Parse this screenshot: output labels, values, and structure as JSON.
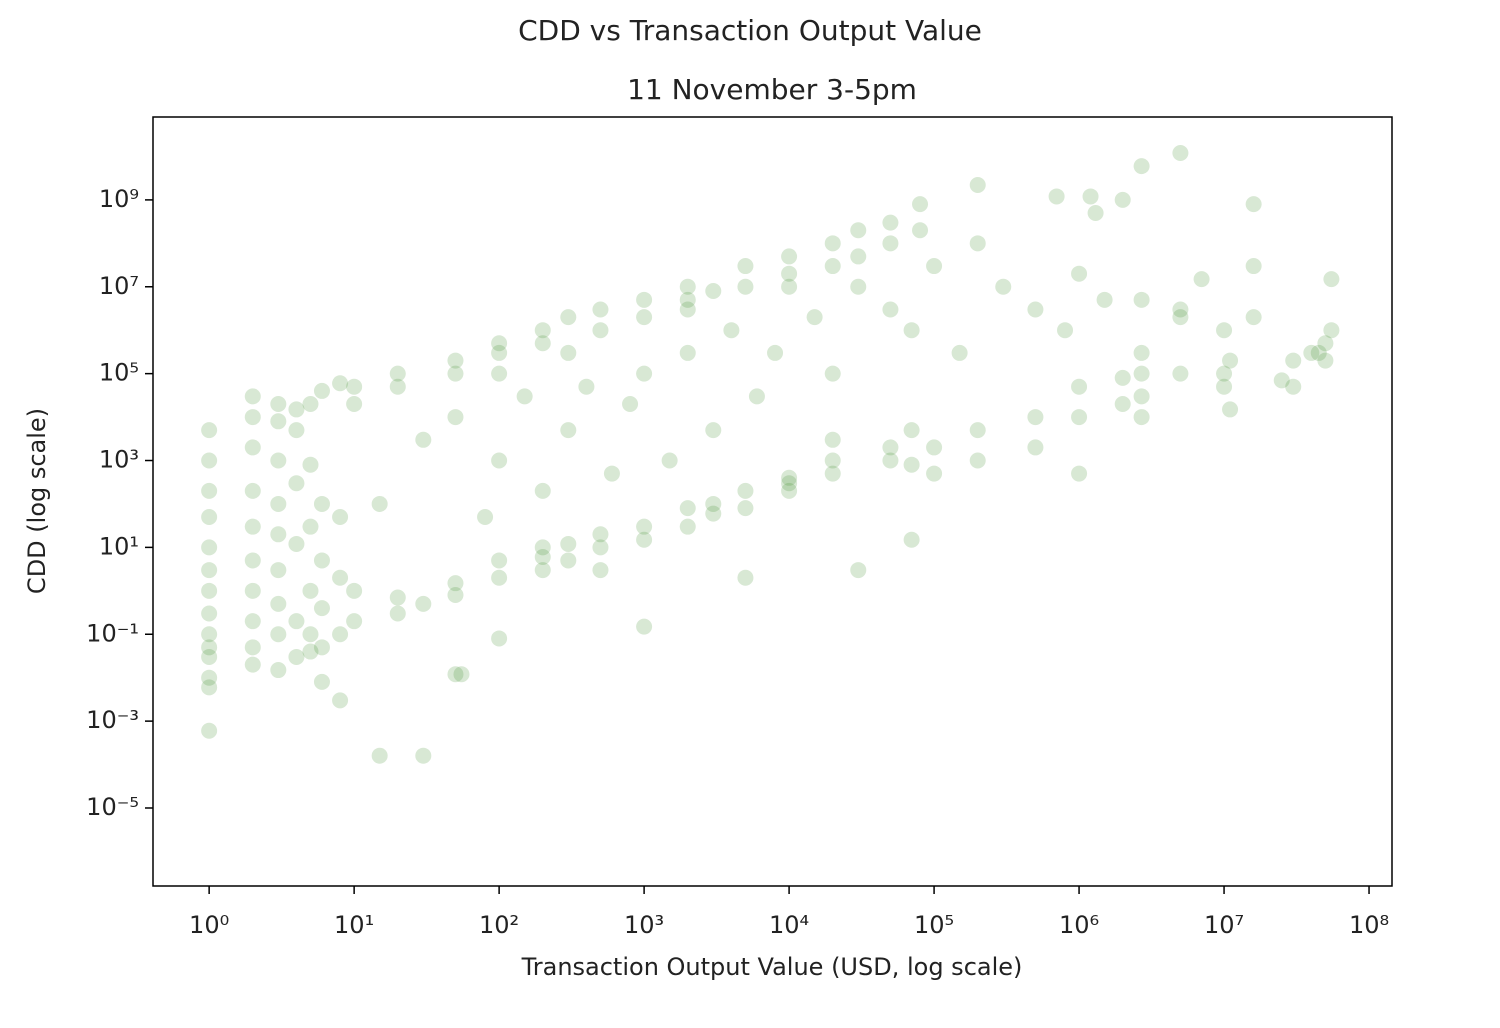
{
  "chart_data": {
    "type": "scatter",
    "title": "CDD vs Transaction Output Value",
    "subtitle": "11 November 3-5pm",
    "x_label": "Transaction Output Value (USD, log scale)",
    "y_label": "CDD (log scale)",
    "color": "#3a8a2a",
    "alpha": 0.2,
    "xscale": "log",
    "yscale": "log",
    "grid": false,
    "xlim": [
      0.41,
      144000000
    ],
    "ylim": [
      1.6e-07,
      81000000000
    ],
    "xticks": [
      {
        "value": 1,
        "label": "10⁰"
      },
      {
        "value": 10,
        "label": "10¹"
      },
      {
        "value": 100,
        "label": "10²"
      },
      {
        "value": 1000,
        "label": "10³"
      },
      {
        "value": 10000,
        "label": "10⁴"
      },
      {
        "value": 100000,
        "label": "10⁵"
      },
      {
        "value": 1000000,
        "label": "10⁶"
      },
      {
        "value": 10000000,
        "label": "10⁷"
      },
      {
        "value": 100000000,
        "label": "10⁸"
      }
    ],
    "yticks": [
      {
        "value": 1e-05,
        "label": "10⁻⁵"
      },
      {
        "value": 0.001,
        "label": "10⁻³"
      },
      {
        "value": 0.1,
        "label": "10⁻¹"
      },
      {
        "value": 10,
        "label": "10¹"
      },
      {
        "value": 1000,
        "label": "10³"
      },
      {
        "value": 100000,
        "label": "10⁵"
      },
      {
        "value": 10000000,
        "label": "10⁷"
      },
      {
        "value": 1000000000,
        "label": "10⁹"
      }
    ],
    "x": [
      1,
      1,
      1,
      1,
      1,
      1,
      1,
      1,
      1,
      1,
      1,
      1,
      1,
      1,
      2,
      2,
      2,
      2,
      2,
      2,
      2,
      2,
      2,
      2,
      3,
      3,
      3,
      3,
      3,
      3,
      3,
      3,
      3,
      4,
      4,
      4,
      4,
      4,
      4,
      5,
      5,
      5,
      5,
      5,
      5,
      6,
      6,
      6,
      6,
      6,
      6,
      8,
      8,
      8,
      8,
      8,
      10,
      10,
      20,
      20,
      30,
      30,
      15,
      50,
      50,
      50,
      100,
      100,
      100,
      200,
      200,
      200,
      300,
      300,
      500,
      500,
      500,
      1000,
      1000,
      1000,
      2000,
      2000,
      3000,
      3000,
      5000,
      5000,
      5000,
      10000,
      10000,
      10000,
      20000,
      20000,
      20000,
      50000,
      50000,
      70000,
      70000,
      70000,
      100000,
      100000,
      200000,
      200000,
      500000,
      500000,
      1000000,
      1000000,
      1000000,
      2000000,
      2000000,
      2700000,
      2700000,
      2700000,
      2700000,
      10,
      10,
      20,
      20,
      50,
      50,
      100,
      100,
      100,
      200,
      200,
      300,
      300,
      500,
      500,
      1000,
      1000,
      2000,
      2000,
      2000,
      3000,
      5000,
      5000,
      10000,
      10000,
      10000,
      20000,
      20000,
      30000,
      30000,
      50000,
      50000,
      80000,
      80000,
      15,
      30,
      50,
      80,
      100,
      150,
      200,
      300,
      400,
      600,
      800,
      1000,
      1500,
      2000,
      3000,
      4000,
      6000,
      8000,
      15000,
      20000,
      30000,
      50000,
      70000,
      100000,
      150000,
      200000,
      300000,
      500000,
      800000,
      1000000,
      1500000,
      2000000,
      2700000,
      5000000,
      10000000,
      10000000,
      11000000,
      10000000,
      11000000,
      16000000,
      16000000,
      16000000,
      30000000,
      30000000,
      40000000,
      50000000,
      50000000,
      55000000,
      55000000,
      45000000,
      25000000,
      7000000,
      5000000,
      5000000,
      5000000,
      2700000,
      200000,
      1200000,
      700000,
      1300000,
      30000,
      55
    ],
    "values": [
      0.0006,
      0.006,
      0.01,
      0.03,
      0.05,
      0.1,
      0.3,
      1,
      3,
      10,
      50,
      200,
      1000,
      5000,
      0.02,
      0.05,
      0.2,
      1,
      5,
      30,
      200,
      2000,
      10000,
      30000,
      0.015,
      0.1,
      0.5,
      3,
      20,
      100,
      1000,
      8000,
      20000,
      0.03,
      0.2,
      12,
      300,
      5000,
      15000,
      0.04,
      0.1,
      1,
      30,
      800,
      20000,
      0.008,
      0.05,
      0.4,
      5,
      100,
      40000,
      0.003,
      0.1,
      2,
      50,
      60000,
      0.2,
      1,
      0.3,
      0.7,
      0.5,
      0.00016,
      0.00016,
      0.8,
      1.5,
      0.012,
      2,
      5,
      0.08,
      3,
      6,
      10,
      5,
      12,
      10,
      20,
      3,
      15,
      30,
      0.15,
      30,
      80,
      60,
      100,
      80,
      200,
      2,
      200,
      400,
      300,
      500,
      1000,
      3000,
      1000,
      2000,
      800,
      5000,
      15,
      2000,
      500,
      5000,
      1000,
      2000,
      10000,
      10000,
      50000,
      500,
      20000,
      80000,
      30000,
      10000,
      100000,
      300000,
      50000,
      20000,
      100000,
      50000,
      200000,
      100000,
      300000,
      500000,
      100000,
      500000,
      1000000,
      300000,
      2000000,
      1000000,
      3000000,
      2000000,
      5000000,
      5000000,
      10000000,
      3000000,
      8000000,
      10000000,
      30000000,
      20000000,
      50000000,
      10000000,
      30000000,
      100000000,
      200000000,
      50000000,
      300000000,
      100000000,
      800000000,
      200000000,
      100,
      3000,
      10000,
      50,
      1000,
      30000,
      200,
      5000,
      50000,
      500,
      20000,
      100000,
      1000,
      300000,
      5000,
      1000000,
      30000,
      300000,
      2000000,
      100000,
      10000000,
      3000000,
      1000000,
      30000000,
      300000,
      100000000,
      10000000,
      3000000,
      1000000,
      20000000,
      5000000,
      1000000000,
      5000000,
      3000000,
      100000,
      50000,
      200000,
      1000000,
      15000,
      2000000,
      30000000,
      800000000,
      200000,
      50000,
      300000,
      500000,
      200000,
      1000000,
      15000000,
      300000,
      70000,
      15000000,
      2000000,
      100000,
      12000000000,
      6000000000,
      2200000000,
      1200000000,
      1200000000,
      500000000,
      3,
      0.012
    ]
  }
}
